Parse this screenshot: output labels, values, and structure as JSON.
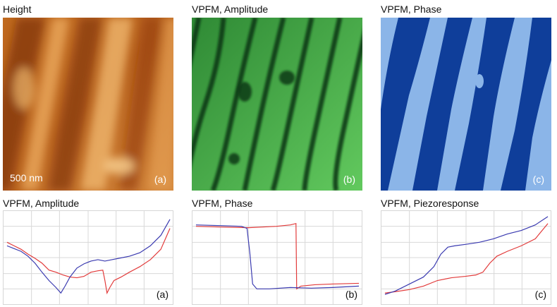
{
  "top_row": [
    {
      "title": "Height",
      "label": "(a)",
      "scale_bar": "500 nm"
    },
    {
      "title": "VPFM, Amplitude",
      "label": "(b)"
    },
    {
      "title": "VPFM, Phase",
      "label": "(c)"
    }
  ],
  "bottom_row": [
    {
      "title": "VPFM, Amplitude",
      "label": "(a)"
    },
    {
      "title": "VPFM, Phase",
      "label": "(b)"
    },
    {
      "title": "VPFM, Piezoresponse",
      "label": "(c)"
    }
  ],
  "colors": {
    "height_dark": "#8c3d0d",
    "height_mid": "#c06a1f",
    "height_light": "#f0b86e",
    "amp_dark": "#0f3a16",
    "amp_light": "#62c95e",
    "phase_dark": "#0f3e9a",
    "phase_light": "#8bb5e8",
    "trace_blue": "#3a3ab0",
    "trace_red": "#e23a3a",
    "grid": "#d8d8d8"
  }
}
